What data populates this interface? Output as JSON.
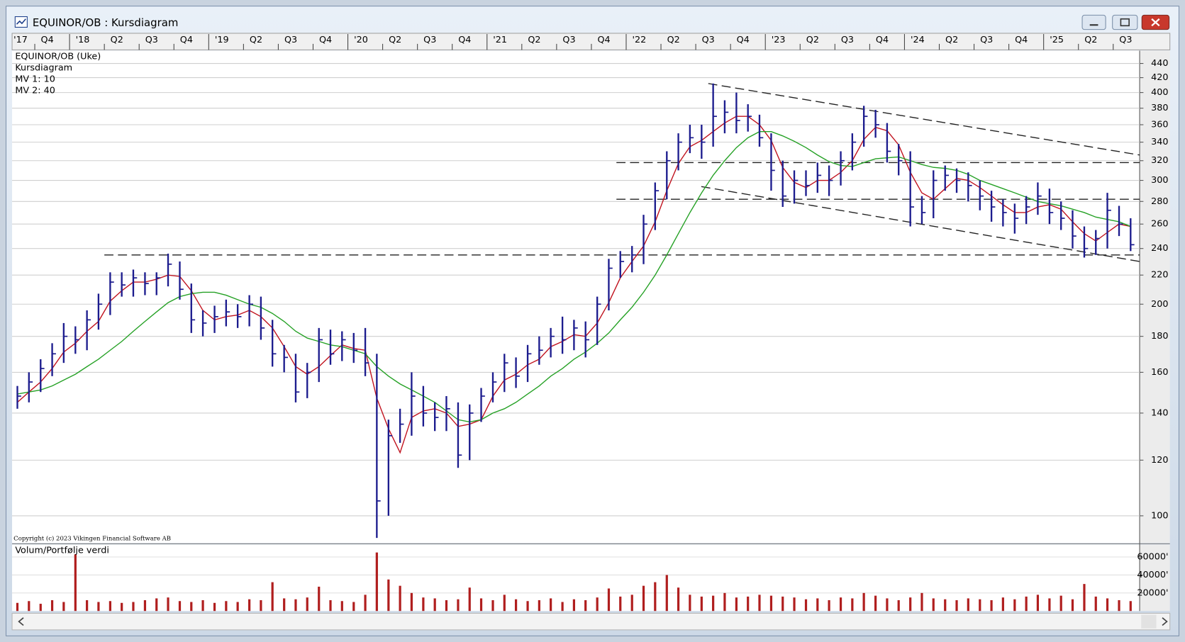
{
  "chart_data": {
    "type": "ohlc",
    "window_title": "EQUINOR/OB : Kursdiagram",
    "info_lines": [
      "EQUINOR/OB (Uke)",
      "Kursdiagram"
    ],
    "copyright": "Copyright (c) 2023 Vikingen Financial Software AB",
    "volume_label": "Volum/Portfølje verdi",
    "log_scale": true,
    "grid": true,
    "bar_color": "#1c1c8e",
    "volume_color": "#b01e1e",
    "xlim": [
      2017.587,
      2025.69
    ],
    "ylim": [
      91.7,
      457.7
    ],
    "yticks": [
      100,
      120,
      140,
      160,
      180,
      200,
      220,
      240,
      260,
      280,
      300,
      320,
      340,
      360,
      380,
      400,
      420,
      440
    ],
    "volume_ylim": [
      0,
      73000
    ],
    "volume_yticks": [
      {
        "value": 20000,
        "label": "20000'"
      },
      {
        "value": 40000,
        "label": "40000'"
      },
      {
        "value": 60000,
        "label": "60000'"
      }
    ],
    "xticks": [
      {
        "value": 2017.5,
        "label": "'17"
      },
      {
        "value": 2017.75,
        "label": "Q4"
      },
      {
        "value": 2018,
        "label": "'18"
      },
      {
        "value": 2018.25,
        "label": "Q2"
      },
      {
        "value": 2018.5,
        "label": "Q3"
      },
      {
        "value": 2018.75,
        "label": "Q4"
      },
      {
        "value": 2019,
        "label": "'19"
      },
      {
        "value": 2019.25,
        "label": "Q2"
      },
      {
        "value": 2019.5,
        "label": "Q3"
      },
      {
        "value": 2019.75,
        "label": "Q4"
      },
      {
        "value": 2020,
        "label": "'20"
      },
      {
        "value": 2020.25,
        "label": "Q2"
      },
      {
        "value": 2020.5,
        "label": "Q3"
      },
      {
        "value": 2020.75,
        "label": "Q4"
      },
      {
        "value": 2021,
        "label": "'21"
      },
      {
        "value": 2021.25,
        "label": "Q2"
      },
      {
        "value": 2021.5,
        "label": "Q3"
      },
      {
        "value": 2021.75,
        "label": "Q4"
      },
      {
        "value": 2022,
        "label": "'22"
      },
      {
        "value": 2022.25,
        "label": "Q2"
      },
      {
        "value": 2022.5,
        "label": "Q3"
      },
      {
        "value": 2022.75,
        "label": "Q4"
      },
      {
        "value": 2023,
        "label": "'23"
      },
      {
        "value": 2023.25,
        "label": "Q2"
      },
      {
        "value": 2023.5,
        "label": "Q3"
      },
      {
        "value": 2023.75,
        "label": "Q4"
      },
      {
        "value": 2024,
        "label": "'24"
      },
      {
        "value": 2024.25,
        "label": "Q2"
      },
      {
        "value": 2024.5,
        "label": "Q3"
      },
      {
        "value": 2024.75,
        "label": "Q4"
      },
      {
        "value": 2025,
        "label": "'25"
      },
      {
        "value": 2025.25,
        "label": "Q2"
      },
      {
        "value": 2025.5,
        "label": "Q3"
      }
    ],
    "x": [
      2017.625,
      2017.708,
      2017.792,
      2017.875,
      2017.958,
      2018.042,
      2018.125,
      2018.208,
      2018.292,
      2018.375,
      2018.458,
      2018.542,
      2018.625,
      2018.708,
      2018.792,
      2018.875,
      2018.958,
      2019.042,
      2019.125,
      2019.208,
      2019.292,
      2019.375,
      2019.458,
      2019.542,
      2019.625,
      2019.708,
      2019.792,
      2019.875,
      2019.958,
      2020.042,
      2020.125,
      2020.208,
      2020.292,
      2020.375,
      2020.458,
      2020.542,
      2020.625,
      2020.708,
      2020.792,
      2020.875,
      2020.958,
      2021.042,
      2021.125,
      2021.208,
      2021.292,
      2021.375,
      2021.458,
      2021.542,
      2021.625,
      2021.708,
      2021.792,
      2021.875,
      2021.958,
      2022.042,
      2022.125,
      2022.208,
      2022.292,
      2022.375,
      2022.458,
      2022.542,
      2022.625,
      2022.708,
      2022.792,
      2022.875,
      2022.958,
      2023.042,
      2023.125,
      2023.208,
      2023.292,
      2023.375,
      2023.458,
      2023.542,
      2023.625,
      2023.708,
      2023.792,
      2023.875,
      2023.958,
      2024.042,
      2024.125,
      2024.208,
      2024.292,
      2024.375,
      2024.458,
      2024.542,
      2024.625,
      2024.708,
      2024.792,
      2024.875,
      2024.958,
      2025.042,
      2025.125,
      2025.208,
      2025.292,
      2025.375,
      2025.458,
      2025.542,
      2025.625
    ],
    "highs": [
      153,
      160,
      167,
      176,
      188,
      186,
      196,
      207,
      222,
      222,
      224,
      222,
      222,
      236,
      230,
      214,
      196,
      199,
      203,
      200,
      206,
      205,
      190,
      175,
      170,
      165,
      185,
      184,
      183,
      182,
      185,
      170,
      137,
      142,
      160,
      153,
      145,
      148,
      145,
      144,
      152,
      160,
      170,
      168,
      175,
      180,
      185,
      192,
      190,
      189,
      205,
      232,
      238,
      242,
      268,
      298,
      330,
      350,
      360,
      360,
      412,
      390,
      400,
      385,
      372,
      350,
      320,
      310,
      310,
      318,
      315,
      330,
      350,
      383,
      378,
      362,
      338,
      330,
      285,
      310,
      315,
      312,
      308,
      300,
      290,
      282,
      278,
      285,
      298,
      292,
      280,
      272,
      258,
      255,
      288,
      276,
      265
    ],
    "lows": [
      142,
      145,
      150,
      158,
      165,
      170,
      172,
      184,
      193,
      205,
      205,
      206,
      206,
      212,
      203,
      182,
      180,
      182,
      186,
      185,
      186,
      178,
      163,
      160,
      145,
      147,
      155,
      164,
      166,
      165,
      158,
      93,
      100,
      127,
      130,
      134,
      132,
      132,
      117,
      120,
      136,
      145,
      150,
      152,
      155,
      164,
      168,
      170,
      172,
      168,
      175,
      196,
      218,
      222,
      228,
      255,
      282,
      310,
      328,
      322,
      335,
      350,
      350,
      352,
      335,
      290,
      275,
      278,
      285,
      288,
      285,
      295,
      310,
      335,
      345,
      318,
      305,
      258,
      260,
      265,
      290,
      288,
      280,
      272,
      262,
      258,
      252,
      260,
      268,
      260,
      255,
      240,
      233,
      235,
      240,
      250,
      238
    ],
    "closes": [
      148,
      155,
      162,
      170,
      180,
      178,
      190,
      200,
      215,
      213,
      218,
      214,
      218,
      228,
      210,
      190,
      188,
      192,
      195,
      192,
      200,
      185,
      170,
      168,
      150,
      160,
      178,
      170,
      178,
      172,
      165,
      105,
      130,
      135,
      148,
      140,
      138,
      142,
      122,
      140,
      148,
      155,
      165,
      158,
      170,
      172,
      180,
      178,
      185,
      178,
      200,
      225,
      230,
      235,
      260,
      290,
      320,
      340,
      345,
      340,
      370,
      375,
      365,
      370,
      345,
      310,
      285,
      300,
      295,
      305,
      300,
      320,
      340,
      370,
      360,
      330,
      320,
      275,
      270,
      300,
      305,
      300,
      295,
      285,
      275,
      270,
      265,
      275,
      285,
      270,
      265,
      250,
      240,
      248,
      272,
      260,
      243
    ],
    "series": [
      {
        "name": "MV 1: 10",
        "color": "#c0121e",
        "values": [
          145,
          150,
          155,
          162,
          171,
          176,
          183,
          189,
          202,
          209,
          215,
          215,
          217,
          220,
          219,
          209,
          196,
          190,
          192,
          193,
          196,
          192,
          185,
          174,
          163,
          159,
          163,
          169,
          175,
          173,
          172,
          147,
          133,
          123,
          138,
          141,
          142,
          140,
          134,
          135,
          137,
          148,
          156,
          159,
          164,
          167,
          174,
          177,
          181,
          180,
          188,
          201,
          218,
          230,
          242,
          262,
          290,
          317,
          335,
          342,
          352,
          362,
          370,
          370,
          360,
          342,
          313,
          298,
          293,
          300,
          300,
          308,
          320,
          343,
          357,
          353,
          337,
          308,
          288,
          282,
          292,
          302,
          300,
          293,
          285,
          277,
          270,
          270,
          275,
          277,
          273,
          262,
          252,
          246,
          253,
          260,
          258
        ]
      },
      {
        "name": "MV 2: 40",
        "color": "#25a125",
        "values": [
          149,
          150,
          151,
          153,
          156,
          159,
          163,
          167,
          172,
          177,
          183,
          189,
          195,
          201,
          205,
          207,
          208,
          208,
          206,
          203,
          200,
          198,
          194,
          189,
          183,
          179,
          177,
          175,
          174,
          172,
          170,
          163,
          158,
          154,
          151,
          148,
          145,
          141,
          137,
          136,
          137,
          140,
          142,
          145,
          149,
          153,
          158,
          162,
          167,
          171,
          176,
          182,
          190,
          198,
          208,
          220,
          235,
          252,
          270,
          288,
          305,
          320,
          334,
          345,
          352,
          352,
          347,
          341,
          334,
          326,
          319,
          315,
          314,
          318,
          322,
          323,
          324,
          320,
          316,
          313,
          312,
          310,
          306,
          300,
          296,
          292,
          288,
          284,
          280,
          278,
          276,
          273,
          270,
          266,
          264,
          262,
          258
        ]
      }
    ],
    "volume": [
      9000,
      11000,
      8000,
      12000,
      10000,
      63000,
      12000,
      10000,
      11000,
      9000,
      10000,
      12000,
      14000,
      15000,
      11000,
      10000,
      12000,
      9000,
      11000,
      10000,
      13000,
      12000,
      32000,
      14000,
      13000,
      15000,
      27000,
      12000,
      11000,
      10000,
      18000,
      65000,
      35000,
      28000,
      20000,
      15000,
      14000,
      12000,
      13000,
      26000,
      14000,
      12000,
      18000,
      13000,
      11000,
      12000,
      14000,
      10000,
      13000,
      12000,
      15000,
      25000,
      16000,
      18000,
      28000,
      32000,
      40000,
      26000,
      18000,
      16000,
      17000,
      20000,
      15000,
      16000,
      18000,
      17000,
      16000,
      15000,
      13000,
      14000,
      12000,
      15000,
      14000,
      20000,
      17000,
      14000,
      12000,
      15000,
      20000,
      14000,
      13000,
      12000,
      14000,
      13000,
      12000,
      15000,
      13000,
      16000,
      18000,
      14000,
      17000,
      13000,
      30000,
      16000,
      14000,
      12000,
      11000
    ],
    "trendlines": [
      {
        "x": [
          2018.25,
          2025.69
        ],
        "y": [
          235,
          235
        ]
      },
      {
        "x": [
          2021.93,
          2025.69
        ],
        "y": [
          282,
          282
        ]
      },
      {
        "x": [
          2021.93,
          2025.69
        ],
        "y": [
          318,
          318
        ]
      },
      {
        "x": [
          2022.59,
          2025.69
        ],
        "y": [
          412,
          326
        ]
      },
      {
        "x": [
          2022.54,
          2025.69
        ],
        "y": [
          294,
          230
        ]
      }
    ]
  }
}
